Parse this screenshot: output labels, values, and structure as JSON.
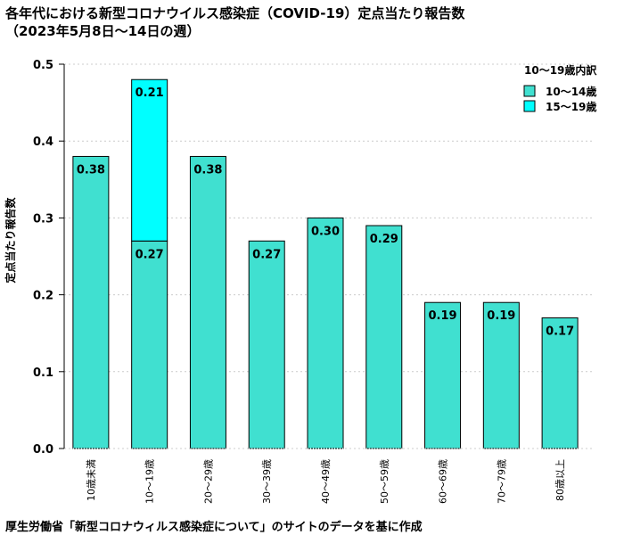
{
  "chart_data": {
    "type": "bar",
    "title": "各年代における新型コロナウイルス感染症（COVID-19）定点当たり報告数",
    "subtitle": "（2023年5月8日〜14日の週）",
    "ylabel": "定点当たり報告数",
    "xlabel": "",
    "ylim": [
      0,
      0.5
    ],
    "yticks": [
      "0.0",
      "0.1",
      "0.2",
      "0.3",
      "0.4",
      "0.5"
    ],
    "ytick_values": [
      0,
      0.1,
      0.2,
      0.3,
      0.4,
      0.5
    ],
    "grid": true,
    "legend_position": "top-right",
    "categories": [
      "10歳未満",
      "10〜19歳",
      "20〜29歳",
      "30〜39歳",
      "40〜49歳",
      "50〜59歳",
      "60〜69歳",
      "70〜79歳",
      "80歳以上"
    ],
    "series": [
      {
        "name": "10〜14歳",
        "values": [
          0.38,
          0.27,
          0.38,
          0.27,
          0.3,
          0.29,
          0.19,
          0.19,
          0.17
        ]
      },
      {
        "name": "15〜19歳",
        "values": [
          0,
          0.21,
          0,
          0,
          0,
          0,
          0,
          0,
          0
        ]
      }
    ],
    "data_labels": [
      {
        "category": 0,
        "series": 0,
        "text": "0.38"
      },
      {
        "category": 1,
        "series": 1,
        "text": "0.21"
      },
      {
        "category": 1,
        "series": 0,
        "text": "0.27"
      },
      {
        "category": 2,
        "series": 0,
        "text": "0.38"
      },
      {
        "category": 3,
        "series": 0,
        "text": "0.27"
      },
      {
        "category": 4,
        "series": 0,
        "text": "0.30"
      },
      {
        "category": 5,
        "series": 0,
        "text": "0.29"
      },
      {
        "category": 6,
        "series": 0,
        "text": "0.19"
      },
      {
        "category": 7,
        "series": 0,
        "text": "0.19"
      },
      {
        "category": 8,
        "series": 0,
        "text": "0.17"
      }
    ],
    "legend_title": "10〜19歳内訳",
    "colors": {
      "base": "#40E0D0",
      "upper": "#00FFFF",
      "grid": "#cccccc"
    },
    "source": "厚生労働省「新型コロナウィルス感染症について」のサイトのデータを基に作成"
  }
}
